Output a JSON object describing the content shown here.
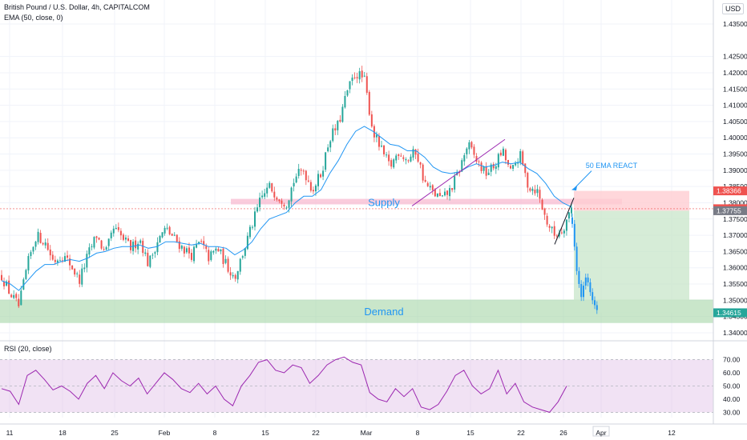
{
  "legend": {
    "symbol": "British Pound / U.S. Dollar, 4h, CAPITALCOM",
    "ema": "EMA (50, close, 0)",
    "rsi": "RSI (20, close)"
  },
  "currency": "USD",
  "colors": {
    "up": "#26a69a",
    "down": "#ef5350",
    "ema": "#2196f3",
    "rsi_line": "#9c27b0",
    "rsi_band": "#e1bee7",
    "supply_zone": "#f8bbd0",
    "demand_zone": "#a5d6a7",
    "stop_zone": "#ffcdd2",
    "target_zone": "#c8e6c9",
    "projection_candles": "#2196f3",
    "annotation": "#2196f3",
    "trendline": "#9c27b0"
  },
  "annotations": {
    "supply": "Supply",
    "demand": "Demand",
    "ema_react": "50 EMA REACT"
  },
  "price_axis": {
    "ticks": [
      "1.43500",
      "1.42500",
      "1.42000",
      "1.41500",
      "1.41000",
      "1.40500",
      "1.40000",
      "1.39500",
      "1.39000",
      "1.38500",
      "1.38000",
      "1.37500",
      "1.37000",
      "1.36500",
      "1.36000",
      "1.35500",
      "1.35000",
      "1.34500",
      "1.34000"
    ],
    "tags": [
      {
        "label": "1.38366",
        "value": 1.38366,
        "bg": "#ef5350"
      },
      {
        "label": "1.37817",
        "value": 1.37817,
        "bg": "#ef5350"
      },
      {
        "label": "1.37755",
        "value": 1.37755,
        "bg": "#787b86"
      },
      {
        "label": "1.34615",
        "value": 1.34615,
        "bg": "#26a69a"
      }
    ]
  },
  "rsi_axis": {
    "ticks": [
      "70.00",
      "60.00",
      "50.00",
      "40.00",
      "30.00"
    ]
  },
  "time_axis": {
    "labels": [
      "11",
      "18",
      "25",
      "Feb",
      "8",
      "15",
      "22",
      "Mar",
      "8",
      "15",
      "22",
      "26",
      "Apr",
      "12"
    ]
  },
  "chart_data": {
    "type": "candlestick",
    "y_range": [
      1.339,
      1.436
    ],
    "rsi_range": [
      26,
      74
    ],
    "price_path": [
      1.3575,
      1.352,
      1.348,
      1.361,
      1.37,
      1.368,
      1.362,
      1.364,
      1.361,
      1.356,
      1.364,
      1.37,
      1.364,
      1.372,
      1.369,
      1.366,
      1.369,
      1.361,
      1.368,
      1.372,
      1.369,
      1.366,
      1.364,
      1.368,
      1.363,
      1.366,
      1.361,
      1.357,
      1.365,
      1.373,
      1.381,
      1.385,
      1.382,
      1.38,
      1.388,
      1.39,
      1.384,
      1.389,
      1.4,
      1.404,
      1.414,
      1.42,
      1.418,
      1.402,
      1.396,
      1.391,
      1.396,
      1.393,
      1.396,
      1.386,
      1.383,
      1.381,
      1.384,
      1.39,
      1.398,
      1.393,
      1.389,
      1.391,
      1.396,
      1.389,
      1.395,
      1.385,
      1.384,
      1.375,
      1.37,
      1.372,
      1.3785
    ],
    "ema_path": [
      1.356,
      1.355,
      1.353,
      1.356,
      1.359,
      1.361,
      1.361,
      1.362,
      1.3625,
      1.362,
      1.363,
      1.3645,
      1.365,
      1.366,
      1.3665,
      1.3665,
      1.367,
      1.366,
      1.3665,
      1.368,
      1.368,
      1.3675,
      1.367,
      1.3675,
      1.3665,
      1.3665,
      1.366,
      1.364,
      1.3655,
      1.368,
      1.372,
      1.375,
      1.376,
      1.377,
      1.38,
      1.382,
      1.382,
      1.384,
      1.389,
      1.393,
      1.398,
      1.402,
      1.4035,
      1.402,
      1.4,
      1.398,
      1.3975,
      1.396,
      1.396,
      1.394,
      1.391,
      1.3895,
      1.389,
      1.3895,
      1.391,
      1.392,
      1.391,
      1.3915,
      1.3925,
      1.392,
      1.3925,
      1.3905,
      1.389,
      1.386,
      1.382,
      1.38,
      1.3787
    ],
    "projection_path": [
      1.3735,
      1.3665,
      1.359,
      1.355,
      1.351,
      1.3545,
      1.357,
      1.3555,
      1.3525,
      1.35,
      1.3485,
      1.347
    ],
    "rsi_path": [
      48,
      46,
      36,
      58,
      62,
      55,
      47,
      50,
      46,
      40,
      52,
      58,
      48,
      60,
      54,
      50,
      56,
      44,
      52,
      60,
      55,
      48,
      45,
      52,
      44,
      50,
      40,
      35,
      50,
      58,
      68,
      70,
      62,
      60,
      66,
      64,
      52,
      58,
      66,
      70,
      72,
      68,
      66,
      45,
      40,
      38,
      48,
      42,
      48,
      34,
      32,
      36,
      46,
      58,
      62,
      50,
      44,
      48,
      62,
      44,
      52,
      38,
      34,
      32,
      30,
      38,
      50
    ],
    "levels": {
      "stop": 1.38366,
      "entry": 1.37755,
      "current": 1.37817,
      "target": 1.34615
    }
  }
}
